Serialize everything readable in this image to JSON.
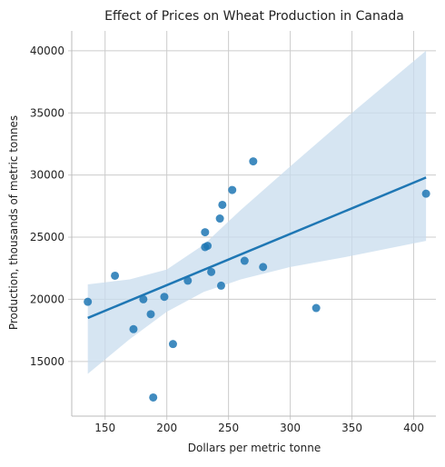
{
  "chart_data": {
    "type": "scatter",
    "title": "Effect of Prices on Wheat Production in Canada",
    "xlabel": "Dollars per metric tonne",
    "ylabel": "Production, thousands of metric tonnes",
    "xlim": [
      123,
      418
    ],
    "ylim": [
      10600,
      41600
    ],
    "xticks": [
      150,
      200,
      250,
      300,
      350,
      400
    ],
    "yticks": [
      15000,
      20000,
      25000,
      30000,
      35000,
      40000
    ],
    "grid": true,
    "colors": {
      "points": "#1f77b4",
      "line": "#1f77b4",
      "band": "#c8dcee"
    },
    "points": [
      {
        "x": 136,
        "y": 19800
      },
      {
        "x": 158,
        "y": 21900
      },
      {
        "x": 173,
        "y": 17600
      },
      {
        "x": 181,
        "y": 20000
      },
      {
        "x": 187,
        "y": 18800
      },
      {
        "x": 189,
        "y": 12100
      },
      {
        "x": 198,
        "y": 20200
      },
      {
        "x": 205,
        "y": 16400
      },
      {
        "x": 217,
        "y": 21500
      },
      {
        "x": 231,
        "y": 24200
      },
      {
        "x": 231,
        "y": 25400
      },
      {
        "x": 233,
        "y": 24300
      },
      {
        "x": 236,
        "y": 22200
      },
      {
        "x": 243,
        "y": 26500
      },
      {
        "x": 244,
        "y": 21100
      },
      {
        "x": 245,
        "y": 27600
      },
      {
        "x": 253,
        "y": 28800
      },
      {
        "x": 263,
        "y": 23100
      },
      {
        "x": 270,
        "y": 31100
      },
      {
        "x": 278,
        "y": 22600
      },
      {
        "x": 321,
        "y": 19300
      },
      {
        "x": 410,
        "y": 28500
      }
    ],
    "regression": {
      "x": [
        136,
        410
      ],
      "y": [
        18500,
        29800
      ]
    },
    "ci_band": {
      "x": [
        136,
        170,
        200,
        230,
        260,
        300,
        350,
        410
      ],
      "upper": [
        21200,
        21600,
        22400,
        24400,
        27200,
        30700,
        35000,
        40000
      ],
      "lower": [
        14000,
        16800,
        19000,
        20600,
        21600,
        22600,
        23500,
        24700
      ]
    }
  }
}
